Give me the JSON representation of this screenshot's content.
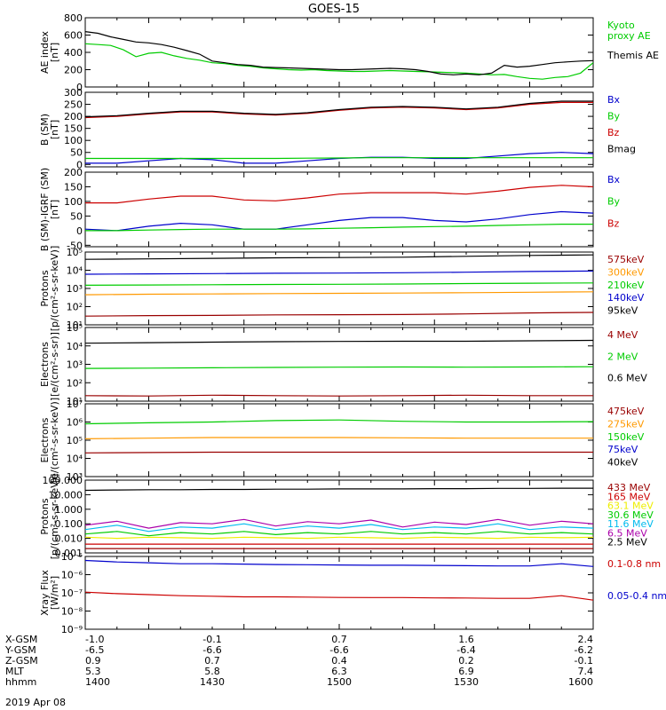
{
  "title": "GOES-15",
  "colors": {
    "black": "#000000",
    "green": "#00cc00",
    "blue": "#0000cc",
    "red": "#cc0000",
    "darkred": "#990000",
    "orange": "#ff9900",
    "cyan": "#00bbee",
    "yellow": "#eeee00",
    "purple": "#aa00aa",
    "magenta": "#cc0066"
  },
  "chart_data": [
    {
      "id": "ae",
      "type": "line",
      "ylabel": "AE index\n[nT]",
      "yscale": "linear",
      "ylim": [
        0,
        800
      ],
      "yticks": [
        0,
        200,
        400,
        600,
        800
      ],
      "yticklabels": [
        "0",
        "200",
        "400",
        "600",
        "800"
      ],
      "x": [
        1400,
        1404,
        1408,
        1412,
        1416,
        1420,
        1424,
        1428,
        1432,
        1436,
        1440,
        1444,
        1448,
        1452,
        1456,
        1460,
        1464,
        1468,
        1472,
        1476,
        1480,
        1484,
        1488,
        1492,
        1496,
        1500,
        1504,
        1508,
        1512,
        1516,
        1520,
        1524,
        1528,
        1532,
        1536,
        1540,
        1544,
        1548,
        1552,
        1556,
        1560
      ],
      "series": [
        {
          "name": "Kyoto\nproxy AE",
          "color": "green",
          "values": [
            500,
            490,
            480,
            430,
            350,
            390,
            400,
            360,
            330,
            310,
            280,
            270,
            250,
            240,
            220,
            210,
            200,
            195,
            200,
            190,
            185,
            180,
            180,
            185,
            190,
            185,
            180,
            175,
            170,
            165,
            160,
            150,
            140,
            145,
            120,
            100,
            90,
            110,
            120,
            160,
            280
          ]
        },
        {
          "name": "Themis AE",
          "color": "black",
          "values": [
            640,
            620,
            580,
            550,
            520,
            510,
            490,
            460,
            420,
            380,
            300,
            280,
            260,
            250,
            230,
            225,
            220,
            215,
            210,
            205,
            200,
            200,
            205,
            210,
            215,
            210,
            200,
            180,
            150,
            140,
            150,
            140,
            160,
            250,
            230,
            240,
            260,
            280,
            290,
            300,
            305
          ]
        }
      ]
    },
    {
      "id": "bsm",
      "type": "line",
      "ylabel": "B (SM)\n[nT]",
      "yscale": "linear",
      "ylim": [
        -10,
        300
      ],
      "yticks": [
        0,
        50,
        100,
        150,
        200,
        250,
        300
      ],
      "yticklabels": [
        "0",
        "50",
        "100",
        "150",
        "200",
        "250",
        "300"
      ],
      "x": [
        1400,
        1410,
        1420,
        1430,
        1440,
        1450,
        1460,
        1470,
        1480,
        1490,
        1500,
        1510,
        1520,
        1530,
        1540,
        1550,
        1560
      ],
      "series": [
        {
          "name": "Bx",
          "color": "blue",
          "values": [
            5,
            5,
            15,
            25,
            20,
            5,
            5,
            15,
            25,
            30,
            30,
            25,
            25,
            35,
            45,
            50,
            45
          ]
        },
        {
          "name": "By",
          "color": "green",
          "values": [
            25,
            25,
            25,
            25,
            25,
            25,
            25,
            26,
            27,
            28,
            28,
            28,
            28,
            28,
            28,
            28,
            28
          ]
        },
        {
          "name": "Bz",
          "color": "red",
          "values": [
            195,
            200,
            210,
            218,
            218,
            210,
            205,
            212,
            225,
            235,
            238,
            235,
            228,
            235,
            250,
            258,
            258
          ]
        },
        {
          "name": "Bmag",
          "color": "black",
          "values": [
            198,
            203,
            213,
            221,
            221,
            213,
            208,
            215,
            228,
            238,
            241,
            238,
            231,
            238,
            254,
            263,
            263
          ]
        }
      ]
    },
    {
      "id": "bigrf",
      "type": "line",
      "ylabel": "B (SM)-IGRF (SM)\n[nT]",
      "yscale": "linear",
      "ylim": [
        -55,
        200
      ],
      "yticks": [
        -50,
        0,
        50,
        100,
        150,
        200
      ],
      "yticklabels": [
        "-50",
        "0",
        "50",
        "100",
        "150",
        "200"
      ],
      "x": [
        1400,
        1410,
        1420,
        1430,
        1440,
        1450,
        1460,
        1470,
        1480,
        1490,
        1500,
        1510,
        1520,
        1530,
        1540,
        1550,
        1560
      ],
      "series": [
        {
          "name": "Bx",
          "color": "blue",
          "values": [
            5,
            0,
            15,
            25,
            20,
            5,
            5,
            20,
            35,
            45,
            45,
            35,
            30,
            40,
            55,
            65,
            60
          ]
        },
        {
          "name": "By",
          "color": "green",
          "values": [
            0,
            0,
            2,
            4,
            5,
            5,
            5,
            6,
            8,
            10,
            12,
            14,
            15,
            18,
            20,
            22,
            22
          ]
        },
        {
          "name": "Bz",
          "color": "red",
          "values": [
            95,
            95,
            108,
            118,
            118,
            105,
            102,
            112,
            125,
            130,
            130,
            130,
            125,
            135,
            148,
            155,
            150
          ]
        }
      ]
    },
    {
      "id": "protons",
      "type": "line",
      "ylabel": "Protons\n[p/(cm²-s-sr-keV)]",
      "yscale": "log",
      "ylim": [
        10,
        100000
      ],
      "yticks": [
        10,
        100,
        1000,
        10000,
        100000
      ],
      "yticklabels": [
        "10¹",
        "10²",
        "10³",
        "10⁴",
        "10⁵"
      ],
      "x": [
        1400,
        1420,
        1440,
        1460,
        1480,
        1500,
        1520,
        1540,
        1560
      ],
      "series": [
        {
          "name": "575keV",
          "color": "darkred",
          "values": [
            30,
            32,
            33,
            35,
            36,
            37,
            40,
            45,
            48
          ]
        },
        {
          "name": "300keV",
          "color": "orange",
          "values": [
            450,
            480,
            500,
            520,
            540,
            560,
            580,
            620,
            650
          ]
        },
        {
          "name": "210keV",
          "color": "green",
          "values": [
            1500,
            1550,
            1600,
            1650,
            1700,
            1750,
            1850,
            1950,
            2000
          ]
        },
        {
          "name": "140keV",
          "color": "blue",
          "values": [
            6000,
            6300,
            6500,
            6800,
            7000,
            7300,
            7800,
            8500,
            9000
          ]
        },
        {
          "name": "95keV",
          "color": "black",
          "values": [
            40000,
            42000,
            45000,
            48000,
            50000,
            52000,
            58000,
            65000,
            70000
          ]
        }
      ]
    },
    {
      "id": "electrons1",
      "type": "line",
      "ylabel": "Electrons\n[e/(cm²-s-sr)]",
      "yscale": "log",
      "ylim": [
        10,
        100000
      ],
      "yticks": [
        10,
        100,
        1000,
        10000,
        100000
      ],
      "yticklabels": [
        "10¹",
        "10²",
        "10³",
        "10⁴",
        "10⁵"
      ],
      "x": [
        1400,
        1420,
        1440,
        1460,
        1480,
        1500,
        1520,
        1540,
        1560
      ],
      "series": [
        {
          "name": "4 MeV",
          "color": "darkred",
          "values": [
            20,
            19,
            21,
            20,
            19,
            20,
            21,
            20,
            20
          ]
        },
        {
          "name": "2 MeV",
          "color": "green",
          "values": [
            600,
            620,
            650,
            680,
            700,
            720,
            700,
            720,
            740
          ]
        },
        {
          "name": "0.6 MeV",
          "color": "black",
          "values": [
            14000,
            15000,
            16000,
            17000,
            17500,
            18000,
            18000,
            19000,
            20000
          ]
        }
      ]
    },
    {
      "id": "electrons2",
      "type": "line",
      "ylabel": "Electrons\n[e/(cm²-s-sr-keV)]",
      "yscale": "log",
      "ylim": [
        1000,
        10000000
      ],
      "yticks": [
        1000,
        10000,
        100000,
        1000000,
        10000000
      ],
      "yticklabels": [
        "10³",
        "10⁴",
        "10⁵",
        "10⁶",
        "10⁷"
      ],
      "x": [
        1400,
        1420,
        1440,
        1460,
        1480,
        1500,
        1520,
        1540,
        1560
      ],
      "series": [
        {
          "name": "475keV",
          "color": "darkred",
          "values": [
            20000,
            21000,
            22000,
            22000,
            22000,
            22000,
            22000,
            22000,
            22000
          ]
        },
        {
          "name": "275keV",
          "color": "orange",
          "values": [
            120000,
            130000,
            140000,
            140000,
            140000,
            135000,
            130000,
            130000,
            130000
          ]
        },
        {
          "name": "150keV",
          "color": "green",
          "values": [
            800000,
            900000,
            1000000,
            1200000,
            1300000,
            1100000,
            1000000,
            1000000,
            1050000
          ]
        },
        {
          "name": "75keV",
          "color": "blue",
          "values": [
            null,
            null,
            null,
            null,
            null,
            null,
            null,
            null,
            null
          ]
        },
        {
          "name": "40keV",
          "color": "black",
          "values": [
            null,
            null,
            null,
            null,
            null,
            null,
            null,
            null,
            null
          ]
        }
      ]
    },
    {
      "id": "hiprotons",
      "type": "line",
      "ylabel": "Protons\n[p/(cm²-s-sr-keV)]",
      "yscale": "log",
      "ylim": [
        0.001,
        100
      ],
      "yticks": [
        0.001,
        0.01,
        0.1,
        1,
        10,
        100
      ],
      "yticklabels": [
        "0.001",
        "0.010",
        "0.100",
        "1.000",
        "10.000",
        "100.000"
      ],
      "x": [
        1400,
        1410,
        1420,
        1430,
        1440,
        1450,
        1460,
        1470,
        1480,
        1490,
        1500,
        1510,
        1520,
        1530,
        1540,
        1550,
        1560
      ],
      "series": [
        {
          "name": "433 MeV",
          "color": "darkred",
          "values": [
            0.002,
            0.002,
            0.002,
            0.002,
            0.002,
            0.002,
            0.002,
            0.002,
            0.002,
            0.002,
            0.002,
            0.002,
            0.002,
            0.002,
            0.002,
            0.002,
            0.002
          ]
        },
        {
          "name": "165 MeV",
          "color": "red",
          "values": [
            0.004,
            0.004,
            0.004,
            0.004,
            0.004,
            0.004,
            0.004,
            0.004,
            0.004,
            0.004,
            0.004,
            0.004,
            0.004,
            0.004,
            0.004,
            0.004,
            0.004
          ]
        },
        {
          "name": "63.1 MeV",
          "color": "yellow",
          "values": [
            0.012,
            0.01,
            0.012,
            0.011,
            0.01,
            0.012,
            0.011,
            0.01,
            0.012,
            0.011,
            0.01,
            0.012,
            0.011,
            0.01,
            0.012,
            0.011,
            0.012
          ]
        },
        {
          "name": "30.6 MeV",
          "color": "green",
          "values": [
            0.02,
            0.03,
            0.015,
            0.025,
            0.02,
            0.03,
            0.018,
            0.025,
            0.02,
            0.03,
            0.02,
            0.025,
            0.02,
            0.03,
            0.02,
            0.025,
            0.02
          ]
        },
        {
          "name": "11.6 MeV",
          "color": "cyan",
          "values": [
            0.04,
            0.08,
            0.03,
            0.06,
            0.05,
            0.1,
            0.04,
            0.07,
            0.05,
            0.09,
            0.04,
            0.06,
            0.05,
            0.1,
            0.04,
            0.06,
            0.05
          ]
        },
        {
          "name": "6.5 MeV",
          "color": "purple",
          "values": [
            0.08,
            0.15,
            0.05,
            0.12,
            0.1,
            0.2,
            0.07,
            0.14,
            0.1,
            0.18,
            0.06,
            0.13,
            0.09,
            0.2,
            0.08,
            0.15,
            0.1
          ]
        },
        {
          "name": "2.5 MeV",
          "color": "black",
          "values": [
            20,
            21,
            22,
            22,
            23,
            23,
            24,
            24,
            25,
            25,
            25,
            26,
            26,
            27,
            27,
            28,
            28
          ]
        }
      ]
    },
    {
      "id": "xray",
      "type": "line",
      "ylabel": "Xray Flux\n[W/m²]",
      "yscale": "log",
      "ylim": [
        1e-09,
        1e-08
      ],
      "yticks": [
        1e-09,
        1e-08,
        1e-07,
        1e-06,
        1e-05
      ],
      "yticklabels": [
        "10⁻⁹",
        "10⁻⁸",
        "10⁻⁷",
        "10⁻⁶",
        "10⁻⁵"
      ],
      "x": [
        1400,
        1410,
        1420,
        1430,
        1440,
        1450,
        1460,
        1470,
        1480,
        1490,
        1500,
        1510,
        1520,
        1530,
        1540,
        1550,
        1560
      ],
      "series": [
        {
          "name": "0.1-0.8 nm",
          "color": "red",
          "values": [
            1.1e-07,
            9e-08,
            8e-08,
            7e-08,
            6.5e-08,
            6e-08,
            6e-08,
            5.8e-08,
            5.6e-08,
            5.5e-08,
            5.5e-08,
            5.3e-08,
            5.2e-08,
            5e-08,
            5e-08,
            7e-08,
            4e-08
          ]
        },
        {
          "name": "0.05-0.4 nm",
          "color": "blue",
          "values": [
            6e-06,
            5e-06,
            4.5e-06,
            4e-06,
            4e-06,
            3.8e-06,
            3.6e-06,
            3.5e-06,
            3.4e-06,
            3.3e-06,
            3.3e-06,
            3.2e-06,
            3.1e-06,
            3e-06,
            3e-06,
            4e-06,
            2.8e-06
          ]
        }
      ]
    }
  ],
  "footer": {
    "rows": [
      {
        "label": "X-GSM",
        "values": [
          "-1.0",
          "-0.1",
          "0.7",
          "1.6",
          "2.4"
        ]
      },
      {
        "label": "Y-GSM",
        "values": [
          "-6.5",
          "-6.6",
          "-6.6",
          "-6.4",
          "-6.2"
        ]
      },
      {
        "label": "Z-GSM",
        "values": [
          "0.9",
          "0.7",
          "0.4",
          "0.2",
          "-0.1"
        ]
      },
      {
        "label": "MLT",
        "values": [
          "5.3",
          "5.8",
          "6.3",
          "6.9",
          "7.4"
        ]
      },
      {
        "label": "hhmm",
        "values": [
          "1400",
          "1430",
          "1500",
          "1530",
          "1600"
        ]
      }
    ],
    "date": "2019 Apr 08"
  }
}
